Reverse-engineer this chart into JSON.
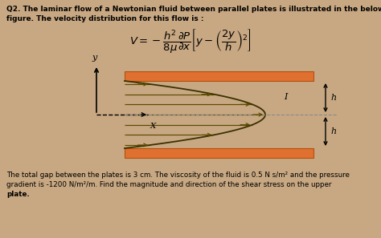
{
  "bg_color": "#c8a882",
  "title_line1": "Q2. The laminar flow of a Newtonian fluid between parallel plates is illustrated in the below",
  "title_line2": "figure. The velocity distribution for this flow is :",
  "bottom_text": "The total gap between the plates is 3 cm. The viscosity of the fluid is 0.5 N s/m² and the pressure\ngradient is -1200 N/m²/m. Find the magnitude and direction of the shear stress on the upper\nplate.",
  "plate_color": "#e07030",
  "stream_color": "#5a4a00",
  "parabola_color": "#3a3000"
}
